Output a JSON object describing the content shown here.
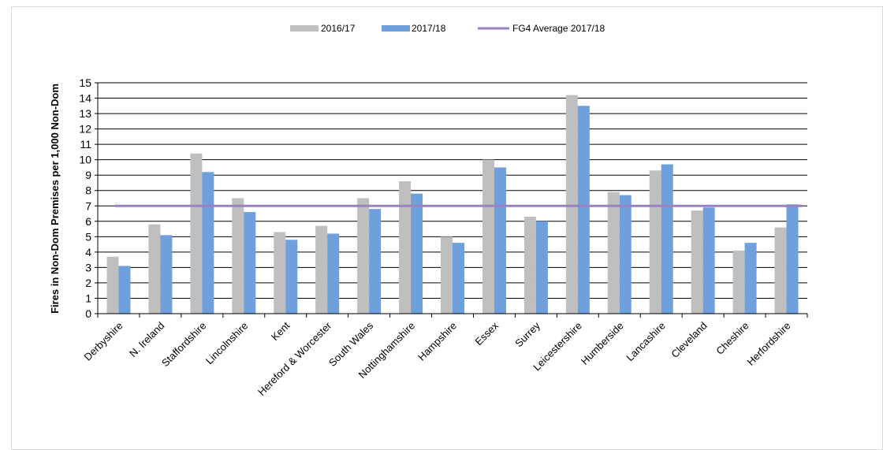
{
  "chart_data": {
    "type": "bar",
    "title": "",
    "xlabel": "",
    "ylabel": "Fires in Non-Dom Premises per 1,000 Non-Dom",
    "ylim": [
      0,
      15
    ],
    "yticks": [
      0,
      1,
      2,
      3,
      4,
      5,
      6,
      7,
      8,
      9,
      10,
      11,
      12,
      13,
      14,
      15
    ],
    "grid": true,
    "legend_position": "top-center",
    "categories": [
      "Derbyshire",
      "N. Ireland",
      "Staffordshire",
      "Lincolnshire",
      "Kent",
      "Hereford & Worcester",
      "South Wales",
      "Nottinghamshire",
      "Hampshire",
      "Essex",
      "Surrey",
      "Leicestershire",
      "Humberside",
      "Lancashire",
      "Cleveland",
      "Cheshire",
      "Herfordshire"
    ],
    "series": [
      {
        "name": "2016/17",
        "color": "#bfbfbf",
        "values": [
          3.7,
          5.8,
          10.4,
          7.5,
          5.3,
          5.7,
          7.5,
          8.6,
          5.0,
          10.0,
          6.3,
          14.2,
          7.9,
          9.3,
          6.7,
          4.1,
          5.6
        ]
      },
      {
        "name": "2017/18",
        "color": "#6fa0dc",
        "values": [
          3.1,
          5.1,
          9.2,
          6.6,
          4.8,
          5.2,
          6.8,
          7.8,
          4.6,
          9.5,
          6.0,
          13.5,
          7.7,
          9.7,
          6.9,
          4.6,
          7.1
        ]
      }
    ],
    "reference_line": {
      "name": "FG4 Average 2017/18",
      "value": 7.0,
      "color": "#9a82c0"
    }
  }
}
